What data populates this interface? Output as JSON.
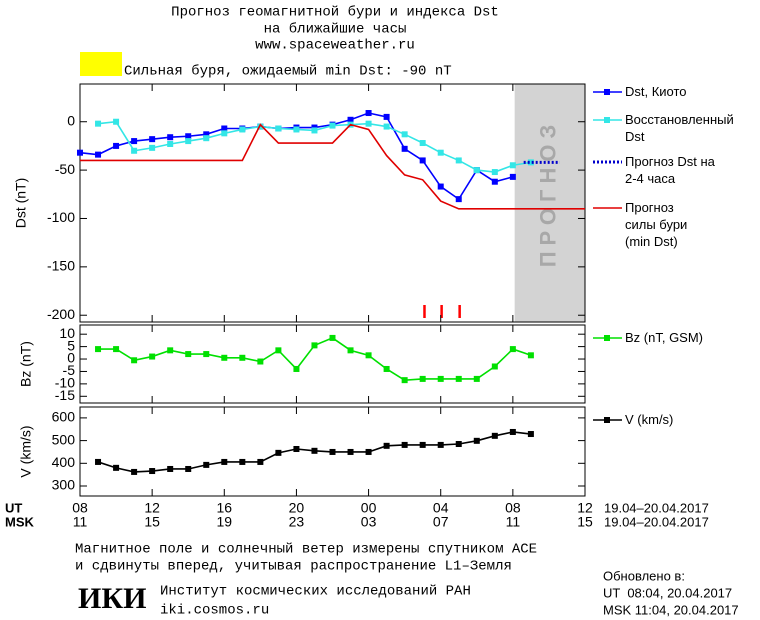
{
  "header": {
    "title": "Прогноз геомагнитной бури и индекса Dst",
    "subtitle": "на ближайшие часы",
    "url": "www.spaceweather.ru",
    "status": "Сильная буря, ожидаемый min Dst: -90 nT",
    "status_color": "#ffff00"
  },
  "x_axis": {
    "xlim": [
      8,
      36
    ],
    "xticks": [
      {
        "value": 8,
        "label": "08"
      },
      12,
      16,
      20,
      {
        "value": 24,
        "label": "00"
      },
      {
        "value": 28,
        "label": "04"
      },
      {
        "value": 32,
        "label": "08"
      },
      {
        "value": 36,
        "label": "12"
      }
    ],
    "msk_ticks": [
      {
        "value": 8,
        "label": "11"
      },
      {
        "value": 12,
        "label": "15"
      },
      {
        "value": 16,
        "label": "19"
      },
      {
        "value": 20,
        "label": "23"
      },
      {
        "value": 24,
        "label": "03"
      },
      {
        "value": 28,
        "label": "07"
      },
      {
        "value": 32,
        "label": "11"
      },
      {
        "value": 36,
        "label": "15"
      }
    ],
    "ut_label": "UT",
    "msk_label": "MSK",
    "date_range_ut": "19.04–20.04.2017",
    "date_range_msk": "19.04–20.04.2017"
  },
  "chart_data": [
    {
      "type": "line",
      "y_label": "Dst (nT)",
      "ylim": [
        -207,
        39
      ],
      "yticks": [
        -200,
        -150,
        -100,
        -50,
        0
      ],
      "forecast_region": [
        32.1,
        36
      ],
      "forecast_label": "ПРОГНОЗ",
      "forecast_color": "#d3d3d3",
      "event_marks_x": [
        27.1,
        28.05,
        29.05
      ],
      "event_color": "#ff0000",
      "series": [
        {
          "name": "Dst, Киото",
          "color": "#0000ff",
          "marker": "square",
          "line_style": "solid",
          "x": [
            8,
            9,
            10,
            11,
            12,
            13,
            14,
            15,
            16,
            17,
            18,
            19,
            20,
            21,
            22,
            23,
            24,
            25,
            26,
            27,
            28,
            29,
            30,
            31,
            32
          ],
          "values": [
            -32,
            -34,
            -25,
            -20,
            -18,
            -16,
            -15,
            -13,
            -7,
            -7,
            -5,
            -7,
            -6,
            -6,
            -3,
            2,
            9,
            5,
            -28,
            -40,
            -67,
            -80,
            -50,
            -62,
            -57
          ]
        },
        {
          "name": "Восстановленный Dst",
          "color": "#33e6e6",
          "marker": "square",
          "line_style": "solid",
          "x": [
            9,
            10,
            11,
            12,
            13,
            14,
            15,
            16,
            17,
            18,
            19,
            20,
            21,
            22,
            23,
            24,
            25,
            26,
            27,
            28,
            29,
            30,
            31,
            32,
            33
          ],
          "values": [
            -2,
            0,
            -30,
            -27,
            -23,
            -20,
            -17,
            -12,
            -8,
            -5,
            -7,
            -8,
            -9,
            -4,
            -3,
            -2,
            -5,
            -13,
            -22,
            -32,
            -40,
            -50,
            -52,
            -45,
            -42
          ]
        },
        {
          "name": "Прогноз Dst на 2-4 часа",
          "color": "#0000cc",
          "marker": null,
          "line_style": "dotted",
          "x": [
            32.6,
            34.6
          ],
          "values": [
            -42,
            -42
          ]
        },
        {
          "name": "Прогноз силы бури (min Dst)",
          "color": "#e00000",
          "marker": null,
          "line_style": "solid",
          "x": [
            8,
            17,
            18,
            19,
            22,
            23,
            24,
            25,
            26,
            27,
            28,
            29,
            36
          ],
          "values": [
            -40,
            -40,
            -3,
            -22,
            -22,
            -3,
            -8,
            -35,
            -55,
            -60,
            -82,
            -90,
            -90
          ]
        }
      ]
    },
    {
      "type": "line",
      "y_label": "Bz (nT)",
      "ylim": [
        -17.7,
        13.7
      ],
      "yticks": [
        -15,
        -10,
        -5,
        0,
        5,
        10
      ],
      "series": [
        {
          "name": "Bz (nT, GSM)",
          "color": "#00e000",
          "marker": "square",
          "line_style": "solid",
          "x": [
            9,
            10,
            11,
            12,
            13,
            14,
            15,
            16,
            17,
            18,
            19,
            20,
            21,
            22,
            23,
            24,
            25,
            26,
            27,
            28,
            29,
            30,
            31,
            32,
            33
          ],
          "values": [
            4,
            4,
            -0.5,
            1,
            3.5,
            2,
            2,
            0.5,
            0.5,
            -1,
            3.5,
            -4,
            5.5,
            8.5,
            3.5,
            1.5,
            -4,
            -8.5,
            -8,
            -8,
            -8,
            -8,
            -3,
            4,
            1.5
          ]
        }
      ]
    },
    {
      "type": "line",
      "y_label": "V (km/s)",
      "ylim": [
        256,
        648
      ],
      "yticks": [
        300,
        400,
        500,
        600
      ],
      "series": [
        {
          "name": "V (km/s)",
          "color": "#000000",
          "marker": "square",
          "line_style": "solid",
          "x": [
            9,
            10,
            11,
            12,
            13,
            14,
            15,
            16,
            17,
            18,
            19,
            20,
            21,
            22,
            23,
            24,
            25,
            26,
            27,
            28,
            29,
            30,
            31,
            32,
            33
          ],
          "values": [
            406,
            380,
            362,
            366,
            375,
            375,
            393,
            406,
            406,
            406,
            446,
            463,
            455,
            450,
            450,
            450,
            477,
            481,
            481,
            481,
            485,
            499,
            521,
            538,
            529
          ]
        }
      ]
    }
  ],
  "footer": {
    "note_1": "Магнитное поле и солнечный ветер измерены спутником ACE",
    "note_2": "и сдвинуты вперед, учитывая распространение L1–Земля",
    "logo": "ИКИ",
    "institute": "Институт космических исследований РАН",
    "institute_url": "iki.cosmos.ru",
    "updated_label": "Обновлено в:",
    "updated_ut": "UT  08:04, 20.04.2017",
    "updated_msk": "MSK 11:04, 20.04.2017"
  }
}
